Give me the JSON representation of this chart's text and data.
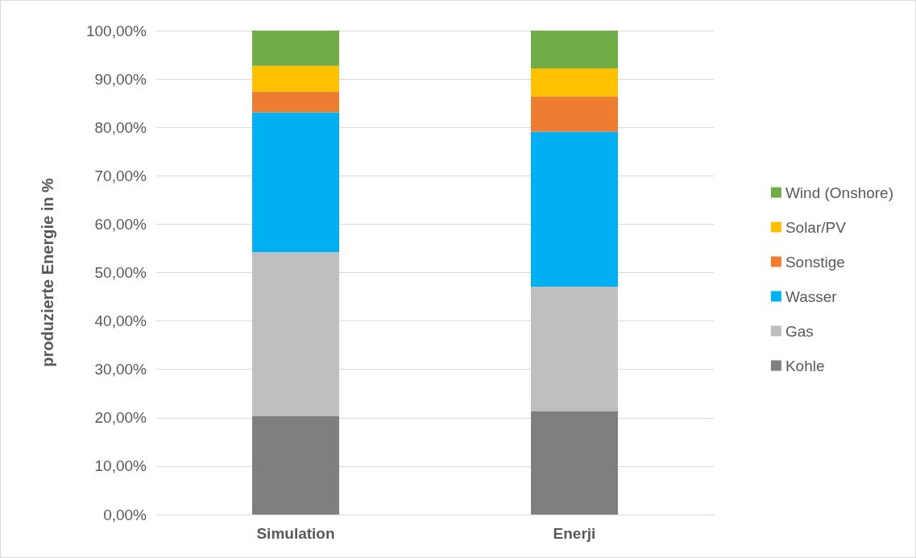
{
  "chart_data": {
    "type": "bar",
    "stacked": true,
    "ylabel": "produzierte Energie in %",
    "categories": [
      "Simulation",
      "Enerji"
    ],
    "series": [
      {
        "name": "Kohle",
        "color": "#7f7f7f",
        "values": [
          20.4,
          21.4
        ]
      },
      {
        "name": "Gas",
        "color": "#bfbfbf",
        "values": [
          33.8,
          25.7
        ]
      },
      {
        "name": "Wasser",
        "color": "#00b0f0",
        "values": [
          28.9,
          32.0
        ]
      },
      {
        "name": "Sonstige",
        "color": "#ed7d31",
        "values": [
          4.3,
          7.3
        ]
      },
      {
        "name": "Solar/PV",
        "color": "#ffc000",
        "values": [
          5.3,
          5.8
        ]
      },
      {
        "name": "Wind (Onshore)",
        "color": "#70ad47",
        "values": [
          7.3,
          7.8
        ]
      }
    ],
    "ylim": [
      0,
      100
    ],
    "yticks": [
      {
        "value": 0,
        "label": "0,00%"
      },
      {
        "value": 10,
        "label": "10,00%"
      },
      {
        "value": 20,
        "label": "20,00%"
      },
      {
        "value": 30,
        "label": "30,00%"
      },
      {
        "value": 40,
        "label": "40,00%"
      },
      {
        "value": 50,
        "label": "50,00%"
      },
      {
        "value": 60,
        "label": "60,00%"
      },
      {
        "value": 70,
        "label": "70,00%"
      },
      {
        "value": 80,
        "label": "80,00%"
      },
      {
        "value": 90,
        "label": "90,00%"
      },
      {
        "value": 100,
        "label": "100,00%"
      }
    ],
    "grid": "y",
    "legend": "right"
  }
}
